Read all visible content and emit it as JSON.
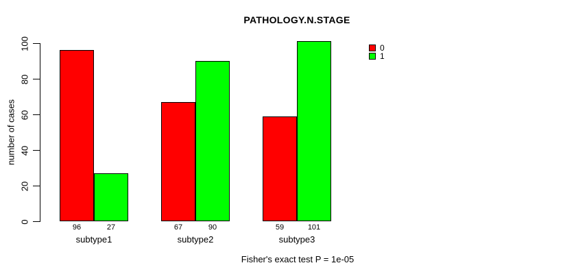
{
  "title": "PATHOLOGY.N.STAGE",
  "footer": "Fisher's exact test P = 1e-05",
  "chart_data": {
    "type": "bar",
    "title": "PATHOLOGY.N.STAGE",
    "xlabel": "",
    "ylabel": "number of cases",
    "categories": [
      "subtype1",
      "subtype2",
      "subtype3"
    ],
    "series": [
      {
        "name": "0",
        "color": "#ff0000",
        "values": [
          96,
          67,
          59
        ]
      },
      {
        "name": "1",
        "color": "#00ff00",
        "values": [
          27,
          90,
          101
        ]
      }
    ],
    "ylim": [
      0,
      100
    ],
    "yticks": [
      0,
      20,
      40,
      60,
      80,
      100
    ],
    "bar_value_labels": [
      [
        "96",
        "27"
      ],
      [
        "67",
        "90"
      ],
      [
        "59",
        "101"
      ]
    ],
    "grid": false,
    "legend_position": "right",
    "annotation": "Fisher's exact test P = 1e-05"
  }
}
